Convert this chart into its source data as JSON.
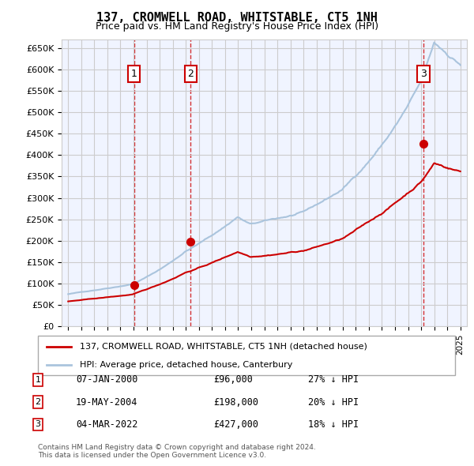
{
  "title": "137, CROMWELL ROAD, WHITSTABLE, CT5 1NH",
  "subtitle": "Price paid vs. HM Land Registry's House Price Index (HPI)",
  "ylabel": "",
  "ylim": [
    0,
    670000
  ],
  "yticks": [
    0,
    50000,
    100000,
    150000,
    200000,
    250000,
    300000,
    350000,
    400000,
    450000,
    500000,
    550000,
    600000,
    650000
  ],
  "ytick_labels": [
    "£0",
    "£50K",
    "£100K",
    "£150K",
    "£200K",
    "£250K",
    "£300K",
    "£350K",
    "£400K",
    "£450K",
    "£500K",
    "£550K",
    "£600K",
    "£650K"
  ],
  "hpi_color": "#aac4dd",
  "price_color": "#cc0000",
  "sale_marker_color": "#cc0000",
  "vline_color": "#cc0000",
  "annotation_box_color": "#cc0000",
  "background_color": "#ffffff",
  "grid_color": "#cccccc",
  "sales": [
    {
      "date_num": 2000.03,
      "price": 96000,
      "label": "1"
    },
    {
      "date_num": 2004.38,
      "price": 198000,
      "label": "2"
    },
    {
      "date_num": 2022.17,
      "price": 427000,
      "label": "3"
    }
  ],
  "legend_entries": [
    {
      "label": "137, CROMWELL ROAD, WHITSTABLE, CT5 1NH (detached house)",
      "color": "#cc0000",
      "lw": 2
    },
    {
      "label": "HPI: Average price, detached house, Canterbury",
      "color": "#aac4dd",
      "lw": 2
    }
  ],
  "table_rows": [
    {
      "num": "1",
      "date": "07-JAN-2000",
      "price": "£96,000",
      "hpi": "27% ↓ HPI"
    },
    {
      "num": "2",
      "date": "19-MAY-2004",
      "price": "£198,000",
      "hpi": "20% ↓ HPI"
    },
    {
      "num": "3",
      "date": "04-MAR-2022",
      "price": "£427,000",
      "hpi": "18% ↓ HPI"
    }
  ],
  "footer": "Contains HM Land Registry data © Crown copyright and database right 2024.\nThis data is licensed under the Open Government Licence v3.0.",
  "xlim_start": 1994.5,
  "xlim_end": 2025.5
}
